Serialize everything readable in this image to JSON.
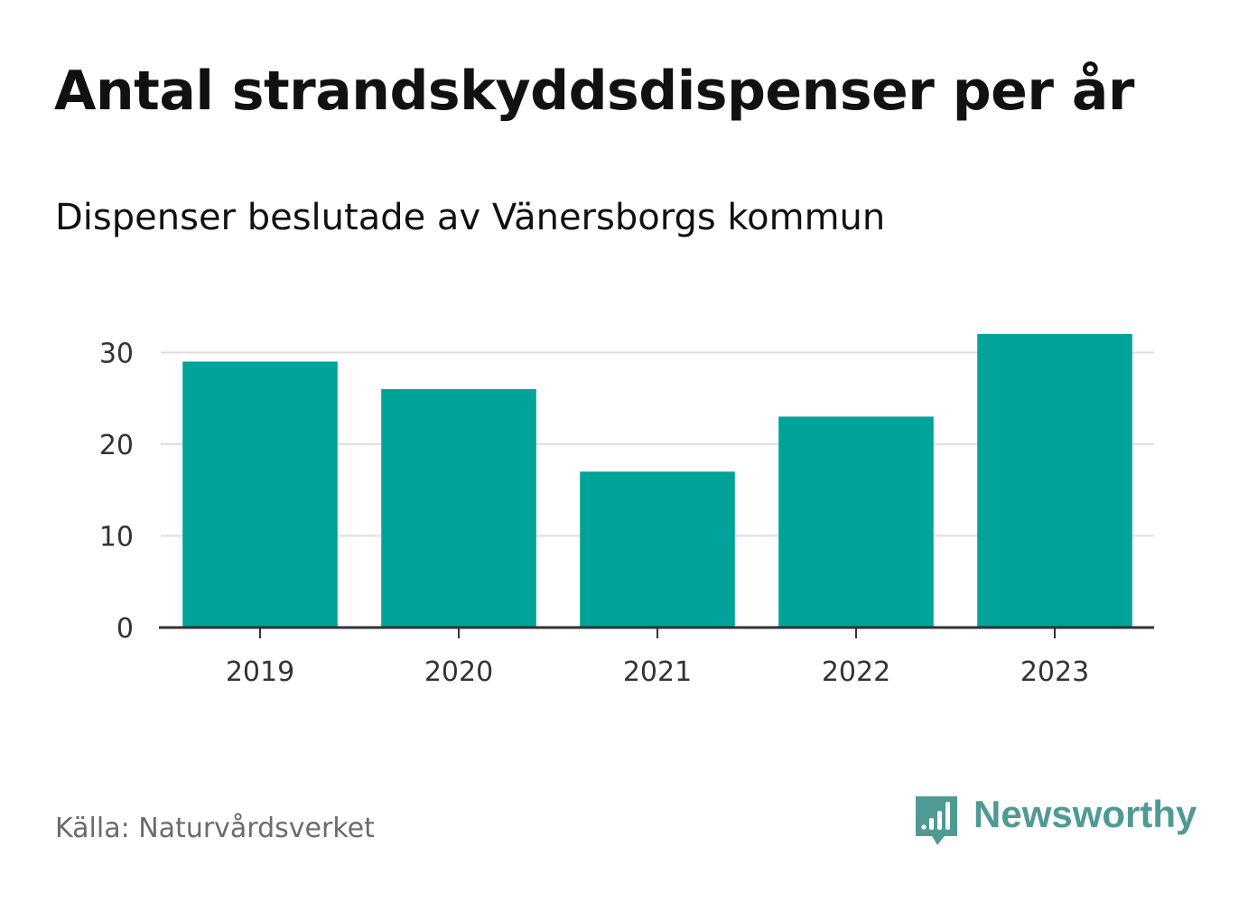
{
  "title": "Antal strandskyddsdispenser per år",
  "subtitle": "Dispenser beslutade av Vänersborgs kommun",
  "source": "Källa: Naturvårdsverket",
  "brand": {
    "name": "Newsworthy",
    "icon": "newsworthy-logo-icon",
    "color": "#4f9a94"
  },
  "chart_data": {
    "type": "bar",
    "title": "Antal strandskyddsdispenser per år",
    "subtitle": "Dispenser beslutade av Vänersborgs kommun",
    "categories": [
      "2019",
      "2020",
      "2021",
      "2022",
      "2023"
    ],
    "values": [
      29,
      26,
      17,
      23,
      32
    ],
    "xlabel": "",
    "ylabel": "",
    "ylim": [
      0,
      32
    ],
    "yticks": [
      0,
      10,
      20,
      30
    ],
    "ytick_labels": [
      "0",
      "10",
      "20",
      "30"
    ],
    "grid": true,
    "legend": "none",
    "bar_color": "#00a39a",
    "grid_color": "#dddddd",
    "axis_color": "#333333"
  }
}
